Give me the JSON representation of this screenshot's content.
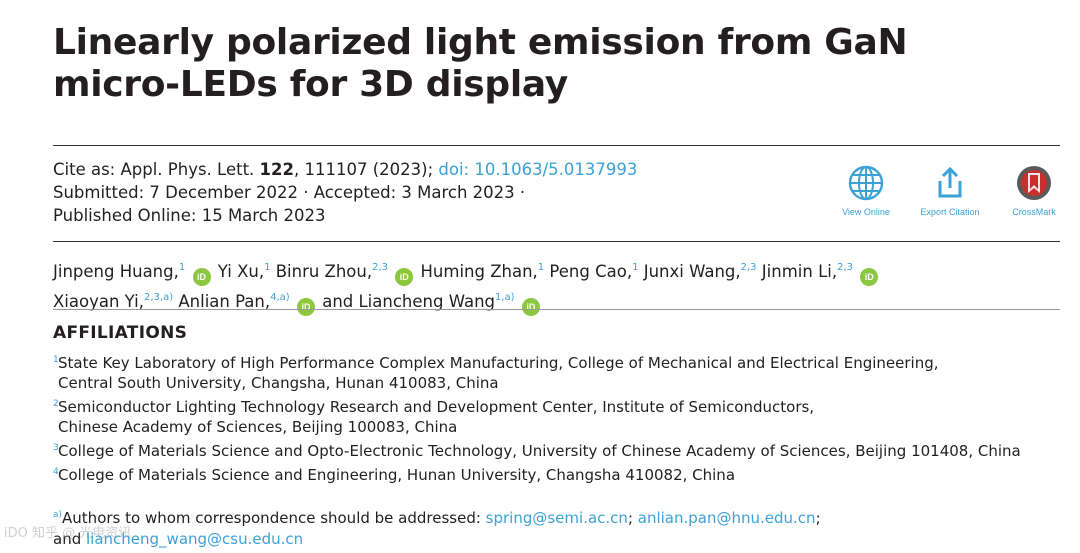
{
  "title": {
    "line1": "Linearly polarized light emission from GaN",
    "line2": "micro-LEDs for 3D display"
  },
  "citation": {
    "prefix": "Cite as: Appl. Phys. Lett. ",
    "volume": "122",
    "rest": ", 111107 (2023); ",
    "doi": "doi: 10.1063/5.0137993",
    "line2": "Submitted: 7 December 2022 · Accepted: 3 March 2023 ·",
    "line3": "Published Online: 15 March 2023"
  },
  "tools": [
    {
      "label": "View Online",
      "icon": "globe-icon"
    },
    {
      "label": "Export Citation",
      "icon": "export-icon"
    },
    {
      "label": "CrossMark",
      "icon": "crossmark-icon"
    }
  ],
  "authors": [
    {
      "name": "Jinpeng Huang,",
      "sup": "1",
      "orcid": true
    },
    {
      "name": "Yi Xu,",
      "sup": "1",
      "orcid": false
    },
    {
      "name": "Binru Zhou,",
      "sup": "2,3",
      "orcid": true
    },
    {
      "name": "Huming Zhan,",
      "sup": "1",
      "orcid": false
    },
    {
      "name": "Peng Cao,",
      "sup": "1",
      "orcid": false
    },
    {
      "name": "Junxi Wang,",
      "sup": "2,3",
      "orcid": false
    },
    {
      "name": "Jinmin Li,",
      "sup": "2,3",
      "orcid": true
    },
    {
      "name": "Xiaoyan Yi,",
      "sup": "2,3,a)",
      "orcid": false
    },
    {
      "name": "Anlian Pan,",
      "sup": "4,a)",
      "orcid": true
    },
    {
      "name": "and Liancheng Wang",
      "sup": "1,a)",
      "orcid": true
    }
  ],
  "orcid_label": "iD",
  "affiliations_heading": "AFFILIATIONS",
  "affiliations": [
    {
      "sup": "1",
      "line1": "State Key Laboratory of High Performance Complex Manufacturing, College of Mechanical and Electrical Engineering,",
      "line2": "Central South University, Changsha, Hunan 410083, China"
    },
    {
      "sup": "2",
      "line1": "Semiconductor Lighting Technology Research and Development Center, Institute of Semiconductors,",
      "line2": "Chinese Academy of Sciences, Beijing 100083, China"
    },
    {
      "sup": "3",
      "line1": "College of Materials Science and Opto-Electronic Technology, University of Chinese Academy of Sciences, Beijing 101408, China",
      "line2": ""
    },
    {
      "sup": "4",
      "line1": "College of Materials Science and Engineering, Hunan University, Changsha 410082, China",
      "line2": ""
    }
  ],
  "correspondence": {
    "sup": "a)",
    "text": "Authors to whom correspondence should be addressed: ",
    "email1": "spring@semi.ac.cn",
    "sep1": "; ",
    "email2": "anlian.pan@hnu.edu.cn",
    "sep2": ";",
    "and": "and ",
    "email3": "liancheng_wang@csu.edu.cn"
  },
  "watermark": "iDO 知乎 @ 光电资讯",
  "colors": {
    "link": "#3ba1d6",
    "orcid": "#8dc63f",
    "text": "#231f20"
  }
}
